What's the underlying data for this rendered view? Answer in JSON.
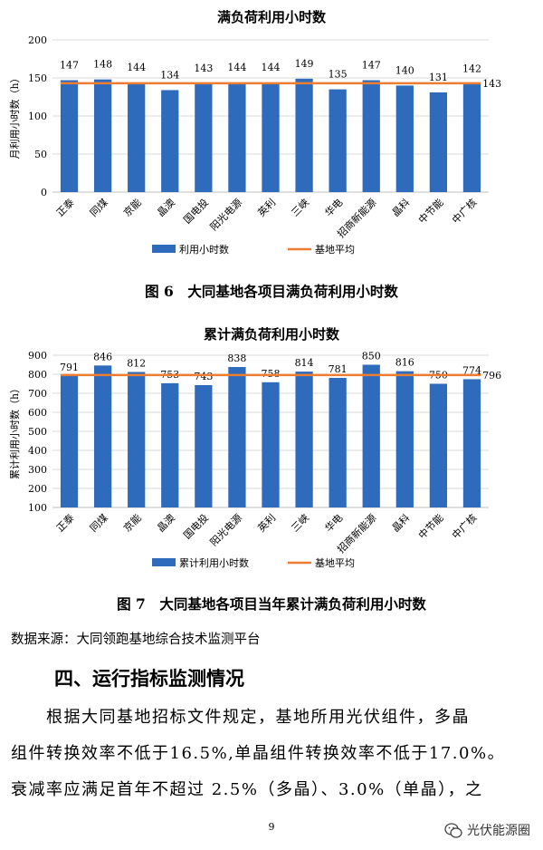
{
  "chart_data": [
    {
      "type": "bar",
      "title": "满负荷利用小时数",
      "ylabel": "月利用小时数（h）",
      "xlabel": "",
      "ylim": [
        0,
        200
      ],
      "yticks": [
        0,
        50,
        100,
        150,
        200
      ],
      "categories": [
        "正泰",
        "同煤",
        "京能",
        "晶澳",
        "国电投",
        "阳光电源",
        "英利",
        "三峡",
        "华电",
        "招商新能源",
        "晶科",
        "中节能",
        "中广核"
      ],
      "series": [
        {
          "name": "利用小时数",
          "values": [
            147,
            148,
            144,
            134,
            143,
            144,
            144,
            149,
            135,
            147,
            140,
            131,
            142
          ],
          "color": "#2e6bbd"
        }
      ],
      "reference_line": {
        "name": "基地平均",
        "value": 143,
        "color": "#ed7d31"
      },
      "legend_position": "bottom",
      "grid": true
    },
    {
      "type": "bar",
      "title": "累计满负荷利用小时数",
      "ylabel": "累计利用小时数（h）",
      "xlabel": "",
      "ylim": [
        100,
        900
      ],
      "yticks": [
        100,
        200,
        300,
        400,
        500,
        600,
        700,
        800,
        900
      ],
      "categories": [
        "正泰",
        "同煤",
        "京能",
        "晶澳",
        "国电投",
        "阳光电源",
        "英利",
        "三峡",
        "华电",
        "招商新能源",
        "晶科",
        "中节能",
        "中广核"
      ],
      "series": [
        {
          "name": "累计利用小时数",
          "values": [
            791,
            846,
            812,
            753,
            743,
            838,
            758,
            814,
            781,
            850,
            816,
            750,
            774
          ],
          "color": "#2e6bbd"
        }
      ],
      "reference_line": {
        "name": "基地平均",
        "value": 796,
        "color": "#ed7d31"
      },
      "legend_position": "bottom",
      "grid": true
    }
  ],
  "figures": {
    "fig6_caption": "图 6　大同基地各项目满负荷利用小时数",
    "fig7_caption": "图 7　大同基地各项目当年累计满负荷利用小时数"
  },
  "source_text": "数据来源：大同领跑基地综合技术监测平台",
  "section_heading": "四、运行指标监测情况",
  "paragraph_lines": [
    "　　根据大同基地招标文件规定，基地所用光伏组件，多晶",
    "组件转换效率不低于16.5%,单晶组件转换效率不低于17.0%。",
    "衰减率应满足首年不超过 2.5%（多晶）、3.0%（单晶），之"
  ],
  "page_number": "9",
  "watermark": {
    "text": "光伏能源圈",
    "icon": "wechat-icon"
  }
}
